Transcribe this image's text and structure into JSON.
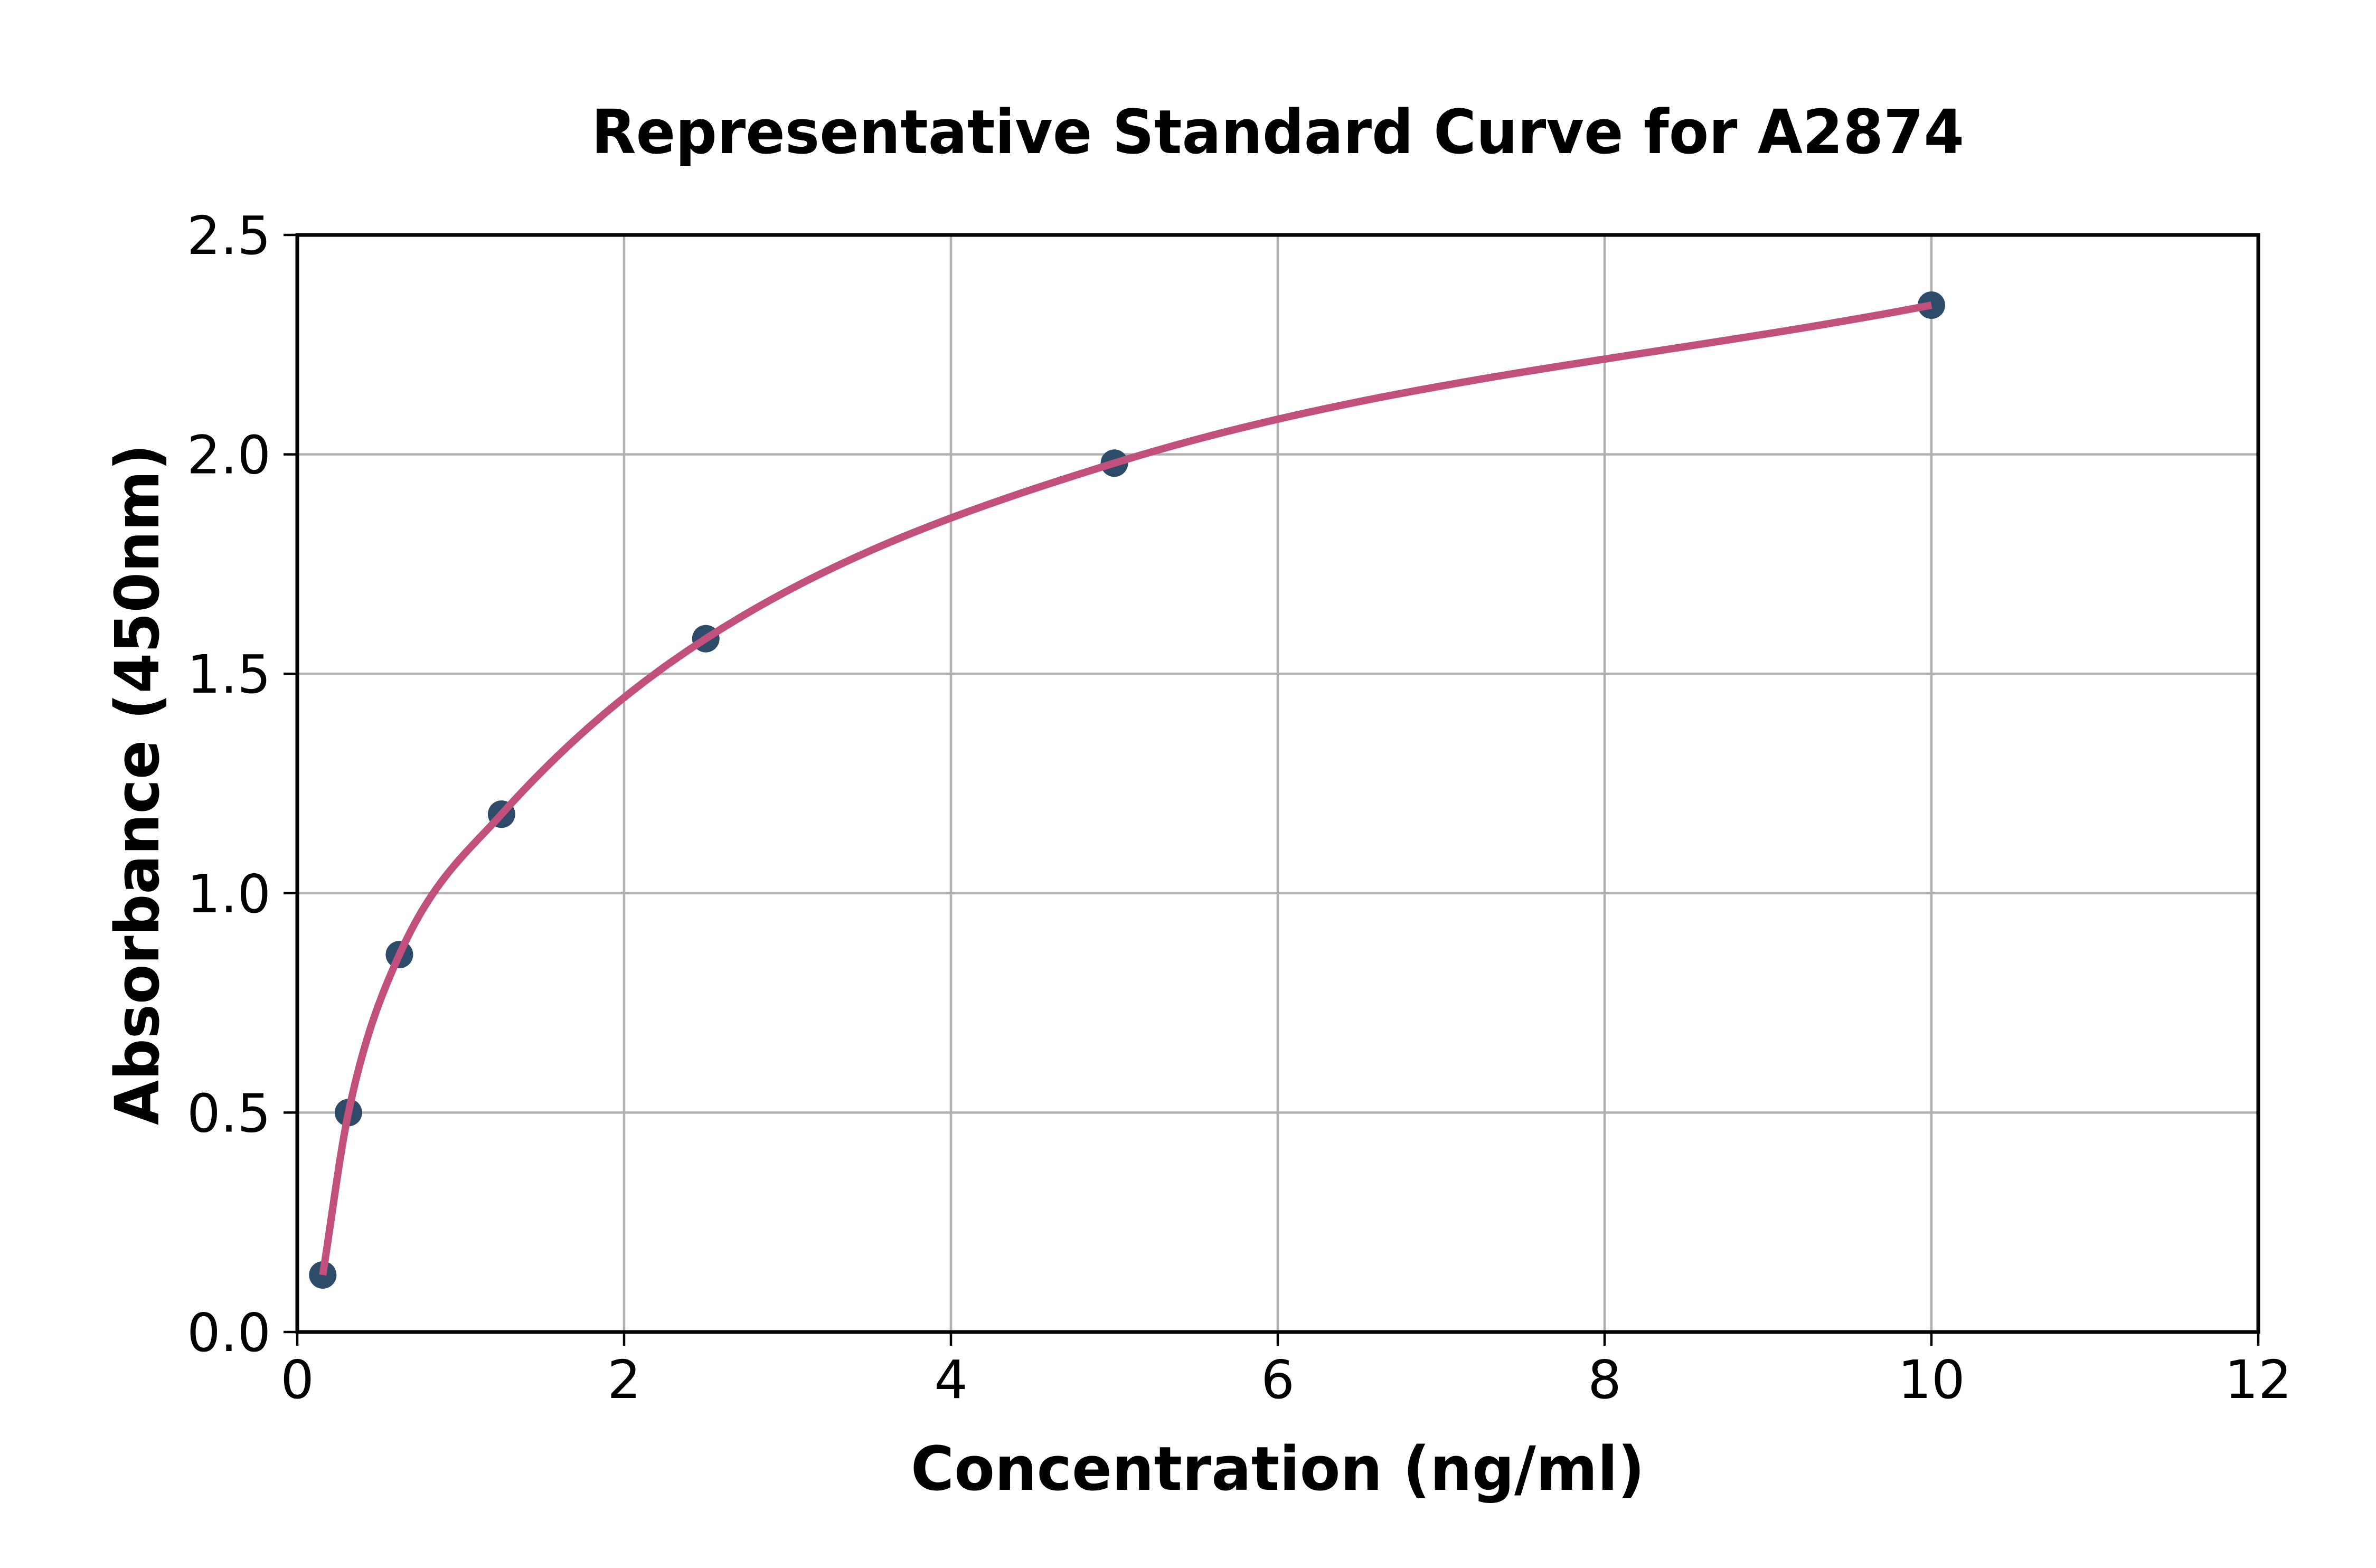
{
  "title": "Representative Standard Curve for A2874",
  "chart_data": {
    "type": "scatter",
    "title": "Representative Standard Curve for A2874",
    "xlabel": "Concentration (ng/ml)",
    "ylabel": "Absorbance (450nm)",
    "xlim": [
      0,
      12
    ],
    "ylim": [
      0,
      2.5
    ],
    "x_tick_labels": [
      "0",
      "2",
      "4",
      "6",
      "8",
      "10",
      "12"
    ],
    "y_tick_labels": [
      "0.0",
      "0.5",
      "1.0",
      "1.5",
      "2.0",
      "2.5"
    ],
    "grid": true,
    "legend": "none",
    "series": [
      {
        "name": "standard-curve",
        "x": [
          0.156,
          0.313,
          0.625,
          1.25,
          2.5,
          5,
          10
        ],
        "y": [
          0.13,
          0.5,
          0.86,
          1.18,
          1.58,
          1.98,
          2.34
        ]
      }
    ],
    "colors": {
      "curve": "#c2507c",
      "marker": "#2e4b6a",
      "grid": "#b0b0b0",
      "spine": "#000000",
      "background": "#ffffff"
    }
  }
}
